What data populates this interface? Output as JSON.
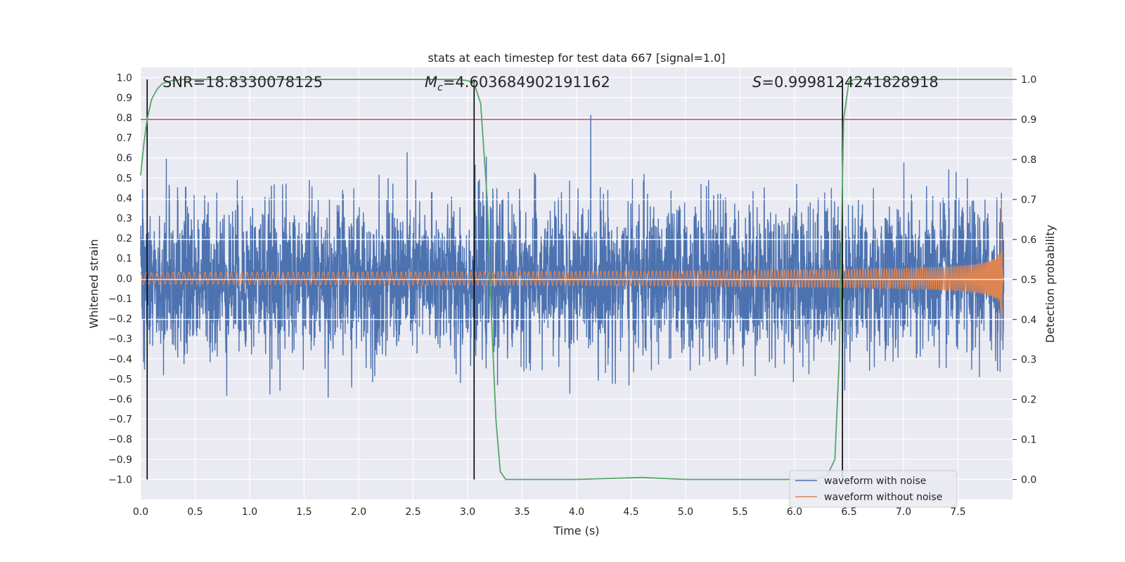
{
  "chart_data": {
    "type": "line",
    "title": "stats at each timestep for test data 667 [signal=1.0]",
    "xlabel": "Time (s)",
    "ylabel": "Whitened strain",
    "ylabel_right": "Detection probability",
    "xlim": [
      0.0,
      8.0
    ],
    "ylim": [
      -1.1,
      1.05
    ],
    "ylim_right": [
      -0.05,
      1.03
    ],
    "x_ticks": [
      "0.0",
      "0.5",
      "1.0",
      "1.5",
      "2.0",
      "2.5",
      "3.0",
      "3.5",
      "4.0",
      "4.5",
      "5.0",
      "5.5",
      "6.0",
      "6.5",
      "7.0",
      "7.5"
    ],
    "y_ticks": [
      "1.0",
      "0.9",
      "0.8",
      "0.7",
      "0.6",
      "0.5",
      "0.4",
      "0.3",
      "0.2",
      "0.1",
      "0.0",
      "−0.1",
      "−0.2",
      "−0.3",
      "−0.4",
      "−0.5",
      "−0.6",
      "−0.7",
      "−0.8",
      "−0.9",
      "−1.0"
    ],
    "y_right_ticks": [
      "1.0",
      "0.9",
      "0.8",
      "0.7",
      "0.6",
      "0.5",
      "0.4",
      "0.3",
      "0.2",
      "0.1",
      "0.0"
    ],
    "grid": true,
    "annotations": {
      "snr": "SNR=18.8330078125",
      "mc_symbol": "M",
      "mc_sub": "c",
      "mc_value": "=4.603684902191162",
      "s_symbol": "S",
      "s_value": "=0.9998124241828918"
    },
    "vertical_lines_x": [
      0.06,
      3.06,
      6.44
    ],
    "threshold_right": 0.9,
    "series": [
      {
        "name": "waveform with noise",
        "color": "#4c72b0",
        "samples": 4000,
        "std": 0.19,
        "end_time": 7.92
      },
      {
        "name": "waveform without noise",
        "color": "#dd8452",
        "start_amplitude": 0.03,
        "peak_amplitude": 0.4,
        "peak_time": 7.9,
        "start_freq_hz": 20,
        "end_time": 7.92
      },
      {
        "name": "detection probability",
        "color": "#55a868",
        "axis": "right",
        "x": [
          0.0,
          0.03,
          0.06,
          0.1,
          0.15,
          0.2,
          0.3,
          0.4,
          1.0,
          2.0,
          2.9,
          3.0,
          3.06,
          3.12,
          3.18,
          3.22,
          3.26,
          3.3,
          3.35,
          4.0,
          4.6,
          5.0,
          6.0,
          6.2,
          6.3,
          6.37,
          6.41,
          6.45,
          6.5,
          6.55,
          8.0
        ],
        "y": [
          0.76,
          0.84,
          0.9,
          0.95,
          0.975,
          0.99,
          0.998,
          1.0,
          1.0,
          1.0,
          1.0,
          0.997,
          0.99,
          0.94,
          0.7,
          0.4,
          0.15,
          0.02,
          0.0,
          0.0,
          0.005,
          0.0,
          0.0,
          0.002,
          0.01,
          0.05,
          0.3,
          0.9,
          0.995,
          1.0,
          1.0
        ]
      }
    ],
    "legend_position": "lower-right"
  }
}
